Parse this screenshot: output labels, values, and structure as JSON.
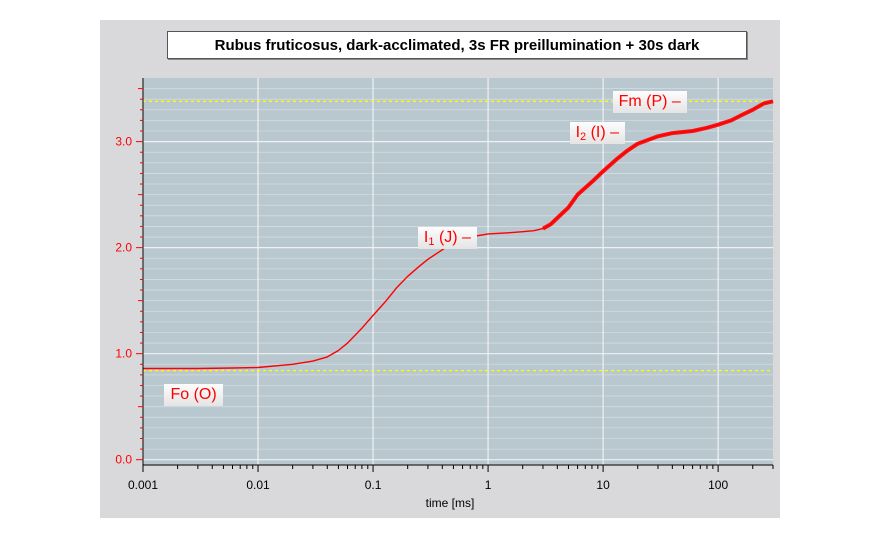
{
  "chart_data": {
    "type": "line",
    "title": "Rubus fruticosus, dark-acclimated, 3s FR preillumination + 30s dark",
    "xlabel": "time [ms]",
    "ylabel": "",
    "xscale": "log",
    "xlim": [
      0.001,
      300
    ],
    "ylim": [
      -0.05,
      3.6
    ],
    "xticks": [
      0.001,
      0.01,
      0.1,
      1,
      10,
      100
    ],
    "xtick_labels": [
      "0.001",
      "0.01",
      "0.1",
      "1",
      "10",
      "100"
    ],
    "yticks": [
      0.0,
      1.0,
      2.0,
      3.0
    ],
    "ytick_labels": [
      "0.0",
      "1.0",
      "2.0",
      "3.0"
    ],
    "grid": true,
    "reference_lines": [
      {
        "label": "Fm (P)",
        "y": 3.38,
        "color": "#ffff00"
      },
      {
        "label": "Fo (O)",
        "y": 0.84,
        "color": "#ffff00"
      }
    ],
    "annotations": [
      {
        "text": "Fm (P)  –",
        "x": 60,
        "y": 3.38
      },
      {
        "text": "I",
        "sub": "2",
        "rest": " (I)  –",
        "x": 6,
        "y": 3.07
      },
      {
        "text": "I",
        "sub": "1",
        "rest": " (J)  –",
        "x": 0.3,
        "y": 2.1
      },
      {
        "text": "Fo (O)",
        "x": 0.0016,
        "y": 0.6
      }
    ],
    "series": [
      {
        "color": "#ff0000",
        "x": [
          0.001,
          0.003,
          0.006,
          0.01,
          0.02,
          0.03,
          0.04,
          0.05,
          0.06,
          0.08,
          0.1,
          0.13,
          0.16,
          0.2,
          0.25,
          0.3,
          0.4,
          0.5,
          0.7,
          1,
          1.5,
          2,
          2.5,
          3,
          3.5,
          4,
          5,
          6,
          8,
          10,
          13,
          16,
          20,
          30,
          40,
          60,
          80,
          100,
          130,
          160,
          200,
          250,
          300
        ],
        "y": [
          0.86,
          0.86,
          0.865,
          0.87,
          0.9,
          0.93,
          0.97,
          1.03,
          1.1,
          1.24,
          1.36,
          1.5,
          1.62,
          1.73,
          1.82,
          1.89,
          1.98,
          2.05,
          2.1,
          2.13,
          2.14,
          2.15,
          2.16,
          2.18,
          2.22,
          2.28,
          2.38,
          2.5,
          2.62,
          2.72,
          2.83,
          2.91,
          2.98,
          3.05,
          3.08,
          3.1,
          3.13,
          3.16,
          3.2,
          3.25,
          3.3,
          3.36,
          3.38
        ]
      }
    ]
  }
}
